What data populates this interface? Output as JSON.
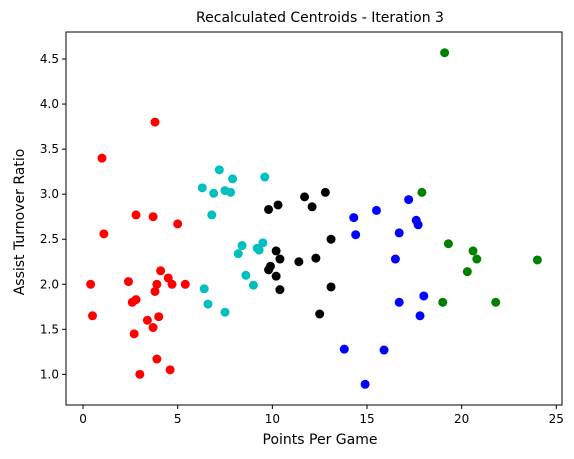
{
  "chart_data": {
    "type": "scatter",
    "title": "Recalculated Centroids - Iteration 3",
    "xlabel": "Points Per Game",
    "ylabel": "Assist Turnover Ratio",
    "xlim": [
      -0.9,
      25.3
    ],
    "ylim": [
      0.66,
      4.8
    ],
    "xticks": [
      0,
      5,
      10,
      15,
      20,
      25
    ],
    "yticks": [
      1.0,
      1.5,
      2.0,
      2.5,
      3.0,
      3.5,
      4.0,
      4.5
    ],
    "grid": false,
    "series": [
      {
        "color": "#ff0000",
        "points": [
          [
            0.4,
            2.0
          ],
          [
            0.5,
            1.65
          ],
          [
            1.0,
            3.4
          ],
          [
            1.1,
            2.56
          ],
          [
            2.4,
            2.03
          ],
          [
            2.6,
            1.8
          ],
          [
            2.8,
            1.83
          ],
          [
            2.7,
            1.45
          ],
          [
            2.8,
            2.77
          ],
          [
            3.0,
            1.0
          ],
          [
            3.4,
            1.6
          ],
          [
            3.7,
            1.52
          ],
          [
            3.7,
            2.75
          ],
          [
            3.8,
            1.92
          ],
          [
            3.9,
            1.17
          ],
          [
            3.9,
            2.0
          ],
          [
            4.0,
            1.64
          ],
          [
            4.1,
            2.15
          ],
          [
            3.8,
            3.8
          ],
          [
            4.5,
            2.07
          ],
          [
            4.6,
            1.05
          ],
          [
            4.7,
            2.0
          ],
          [
            5.0,
            2.67
          ],
          [
            5.4,
            2.0
          ]
        ]
      },
      {
        "color": "#00bfbf",
        "points": [
          [
            6.3,
            3.07
          ],
          [
            6.4,
            1.95
          ],
          [
            6.6,
            1.78
          ],
          [
            6.8,
            2.77
          ],
          [
            6.9,
            3.01
          ],
          [
            7.2,
            3.27
          ],
          [
            7.5,
            3.04
          ],
          [
            7.5,
            1.69
          ],
          [
            7.8,
            3.02
          ],
          [
            7.9,
            3.17
          ],
          [
            8.2,
            2.34
          ],
          [
            8.4,
            2.43
          ],
          [
            8.6,
            2.1
          ],
          [
            9.0,
            1.99
          ],
          [
            9.2,
            2.4
          ],
          [
            9.3,
            2.38
          ],
          [
            9.5,
            2.46
          ],
          [
            9.6,
            3.19
          ]
        ]
      },
      {
        "color": "#000000",
        "points": [
          [
            9.8,
            2.83
          ],
          [
            9.8,
            2.16
          ],
          [
            9.9,
            2.2
          ],
          [
            10.2,
            2.09
          ],
          [
            10.2,
            2.37
          ],
          [
            10.3,
            2.88
          ],
          [
            10.4,
            1.94
          ],
          [
            10.4,
            2.28
          ],
          [
            11.4,
            2.25
          ],
          [
            11.7,
            2.97
          ],
          [
            12.1,
            2.86
          ],
          [
            12.3,
            2.29
          ],
          [
            12.5,
            1.67
          ],
          [
            12.8,
            3.02
          ],
          [
            13.1,
            2.5
          ],
          [
            13.1,
            1.97
          ]
        ]
      },
      {
        "color": "#0000ff",
        "points": [
          [
            13.8,
            1.28
          ],
          [
            14.3,
            2.74
          ],
          [
            14.4,
            2.55
          ],
          [
            14.9,
            0.89
          ],
          [
            15.5,
            2.82
          ],
          [
            15.9,
            1.27
          ],
          [
            16.5,
            2.28
          ],
          [
            16.7,
            1.8
          ],
          [
            16.7,
            2.57
          ],
          [
            17.2,
            2.94
          ],
          [
            17.6,
            2.71
          ],
          [
            17.7,
            2.66
          ],
          [
            17.8,
            1.65
          ],
          [
            18.0,
            1.87
          ]
        ]
      },
      {
        "color": "#008000",
        "points": [
          [
            17.9,
            3.02
          ],
          [
            19.0,
            1.8
          ],
          [
            19.1,
            4.57
          ],
          [
            19.3,
            2.45
          ],
          [
            20.3,
            2.14
          ],
          [
            20.6,
            2.37
          ],
          [
            20.8,
            2.28
          ],
          [
            21.8,
            1.8
          ],
          [
            24.0,
            2.27
          ]
        ]
      }
    ]
  }
}
